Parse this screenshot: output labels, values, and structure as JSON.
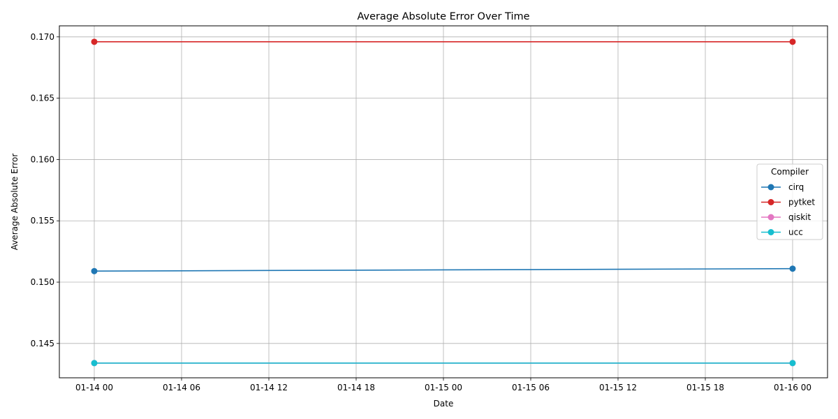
{
  "chart_data": {
    "type": "line",
    "title": "Average Absolute Error Over Time",
    "xlabel": "Date",
    "ylabel": "Average Absolute Error",
    "x": [
      "2025-01-14T00:00",
      "2025-01-16T00:00"
    ],
    "xlim": [
      "2025-01-13T21:36",
      "2025-01-16T02:24"
    ],
    "xticks": [
      {
        "value": "2025-01-14T00:00",
        "label": "01-14 00"
      },
      {
        "value": "2025-01-14T06:00",
        "label": "01-14 06"
      },
      {
        "value": "2025-01-14T12:00",
        "label": "01-14 12"
      },
      {
        "value": "2025-01-14T18:00",
        "label": "01-14 18"
      },
      {
        "value": "2025-01-15T00:00",
        "label": "01-15 00"
      },
      {
        "value": "2025-01-15T06:00",
        "label": "01-15 06"
      },
      {
        "value": "2025-01-15T12:00",
        "label": "01-15 12"
      },
      {
        "value": "2025-01-15T18:00",
        "label": "01-15 18"
      },
      {
        "value": "2025-01-16T00:00",
        "label": "01-16 00"
      }
    ],
    "ylim": [
      0.1422,
      0.1709
    ],
    "yticks": [
      0.145,
      0.15,
      0.155,
      0.16,
      0.165,
      0.17
    ],
    "ytick_labels": [
      "0.145",
      "0.150",
      "0.155",
      "0.160",
      "0.165",
      "0.170"
    ],
    "grid": true,
    "legend": {
      "title": "Compiler",
      "placement": "center-right"
    },
    "series": [
      {
        "name": "cirq",
        "color": "#1f77b4",
        "values": [
          0.1509,
          0.1511
        ]
      },
      {
        "name": "pytket",
        "color": "#d62728",
        "values": [
          0.1696,
          0.1696
        ]
      },
      {
        "name": "qiskit",
        "color": "#e377c2",
        "values": [
          0.1434,
          0.1434
        ]
      },
      {
        "name": "ucc",
        "color": "#17becf",
        "values": [
          0.1434,
          0.1434
        ]
      }
    ]
  }
}
